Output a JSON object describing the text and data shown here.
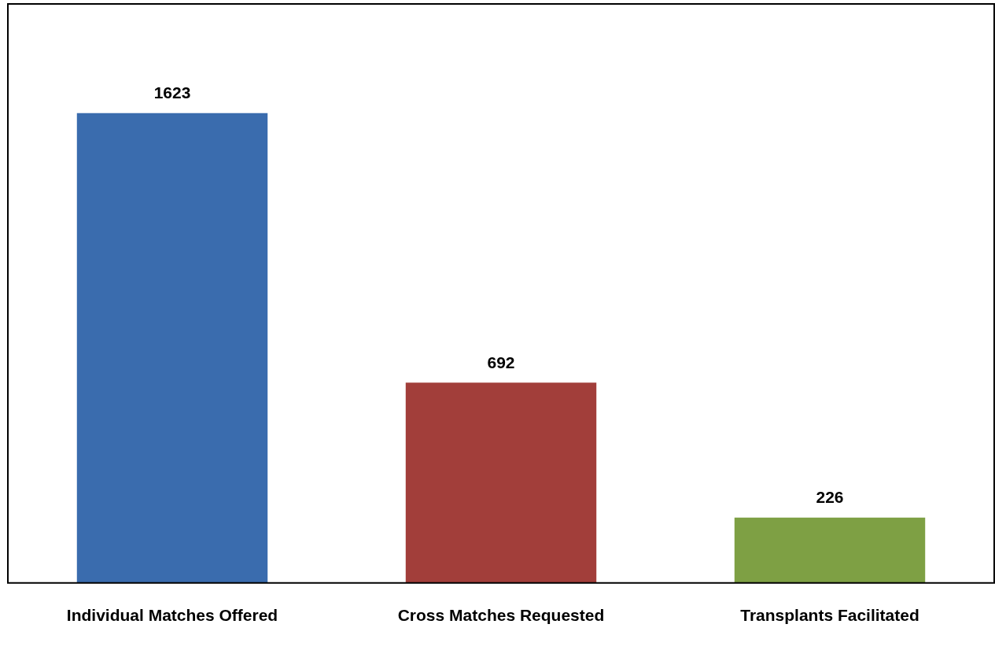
{
  "chart_data": {
    "type": "bar",
    "categories": [
      "Individual Matches Offered",
      "Cross Matches Requested",
      "Transplants Facilitated"
    ],
    "values": [
      1623,
      692,
      226
    ],
    "colors": [
      "#3a6cae",
      "#a23e3a",
      "#7ea044"
    ],
    "data_labels": true,
    "grid": false,
    "legend": false
  }
}
